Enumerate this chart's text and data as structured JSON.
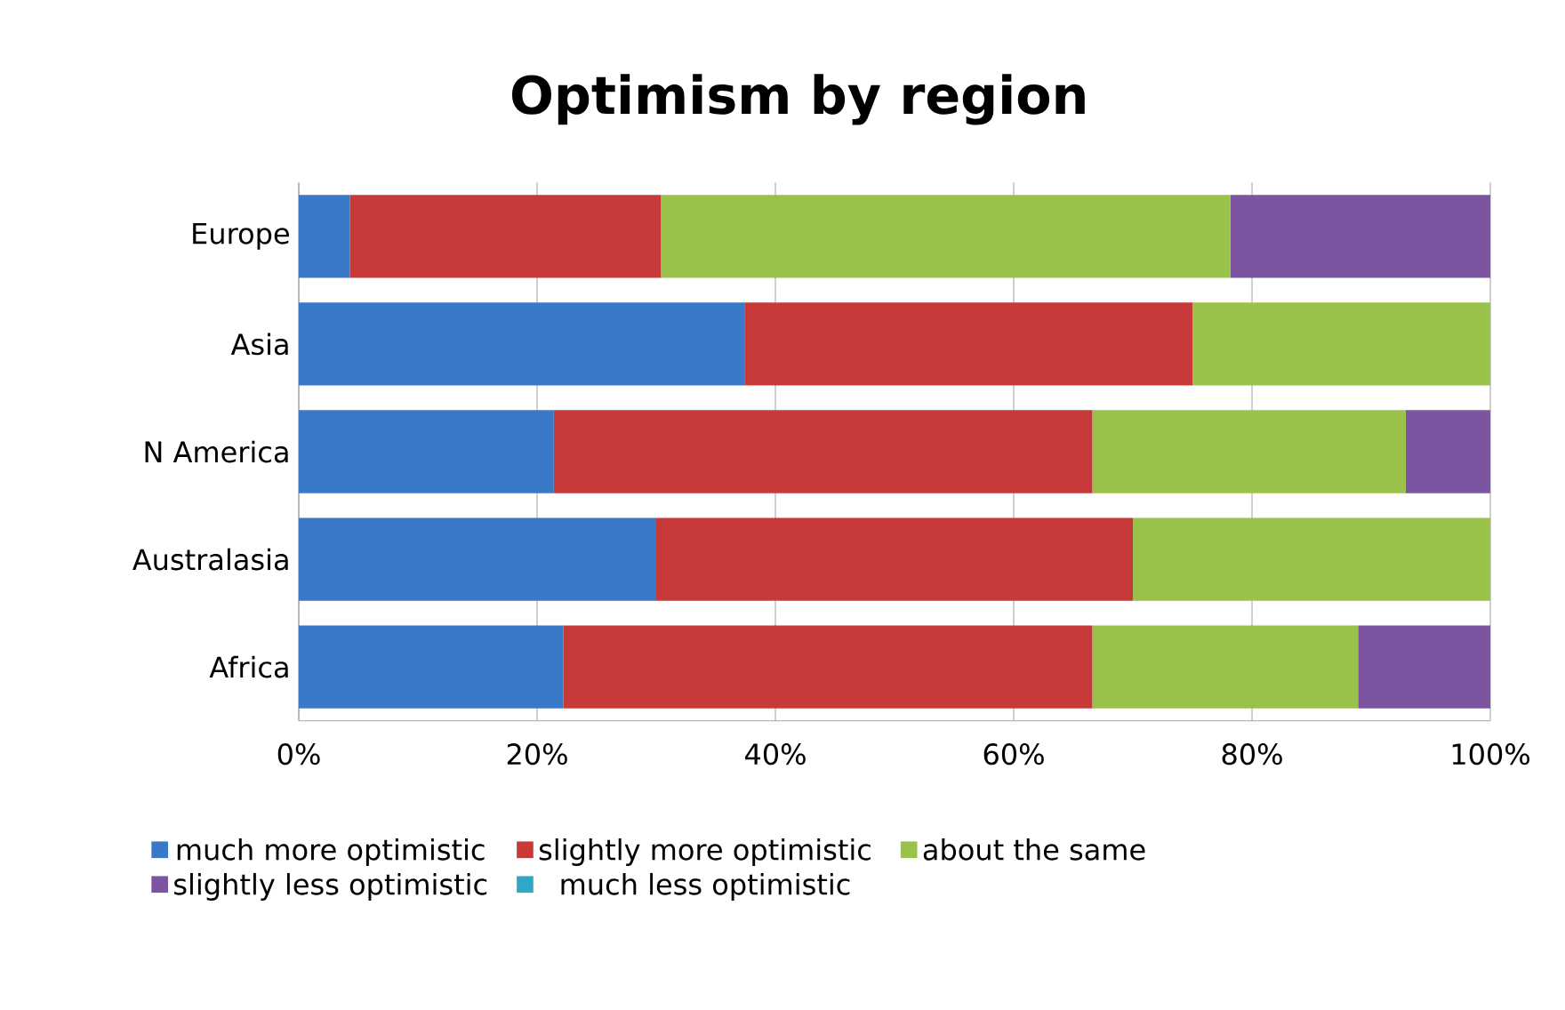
{
  "chart_data": {
    "type": "bar",
    "orientation": "horizontal",
    "stacked": true,
    "title": "Optimism by region",
    "categories": [
      "Europe",
      "Asia",
      "N America",
      "Australasia",
      "Africa"
    ],
    "series": [
      {
        "name": "much more optimistic",
        "color": "#3a78c8",
        "values": [
          4.3,
          37.4,
          21.4,
          30.0,
          22.2
        ]
      },
      {
        "name": "slightly more optimistic",
        "color": "#c83a3a",
        "values": [
          26.1,
          37.6,
          45.2,
          40.0,
          44.4
        ]
      },
      {
        "name": "about the same",
        "color": "#9ac24a",
        "values": [
          47.8,
          25.0,
          26.3,
          30.0,
          22.3
        ]
      },
      {
        "name": "slightly less optimistic",
        "color": "#7b55a0",
        "values": [
          21.8,
          0,
          7.1,
          0,
          11.1
        ]
      },
      {
        "name": "much less optimistic",
        "color": "#2fa8c8",
        "values": [
          0,
          0,
          0,
          0,
          0
        ]
      }
    ],
    "xlim": [
      0,
      100
    ],
    "xticks": [
      {
        "value": 0,
        "label": "0%"
      },
      {
        "value": 20,
        "label": "20%"
      },
      {
        "value": 40,
        "label": "40%"
      },
      {
        "value": 60,
        "label": "60%"
      },
      {
        "value": 80,
        "label": "80%"
      },
      {
        "value": 100,
        "label": "100%"
      }
    ],
    "grid": "x",
    "legend": "bottom"
  }
}
